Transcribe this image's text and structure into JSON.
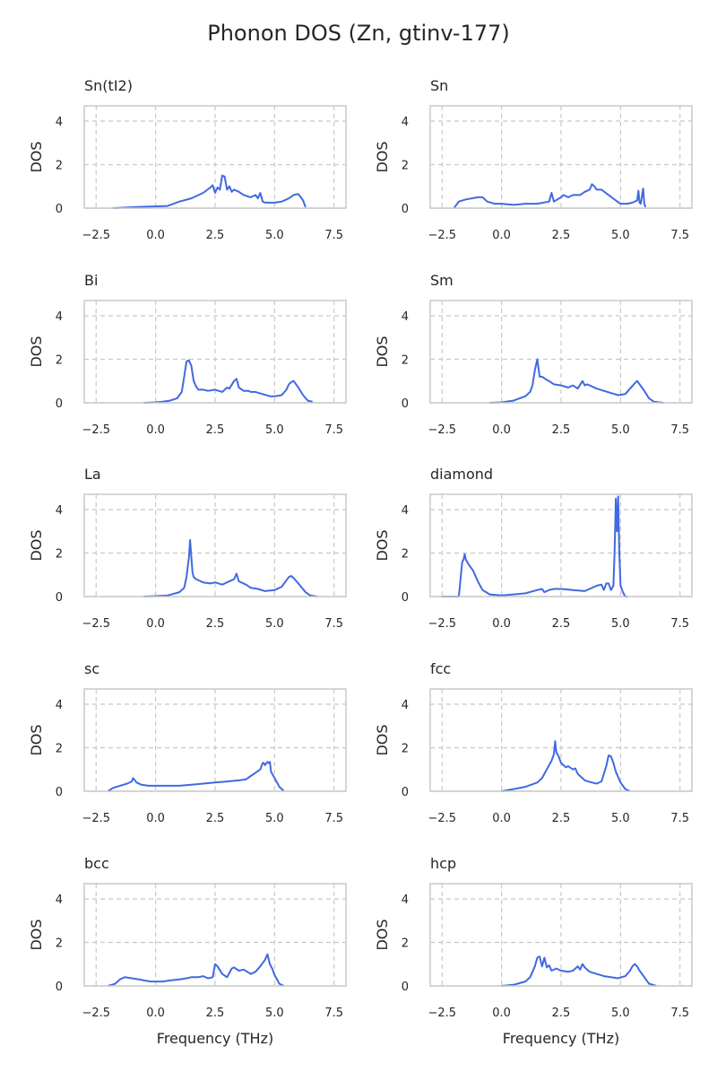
{
  "figure": {
    "title": "Phonon DOS (Zn, gtinv-177)"
  },
  "style": {
    "line_color": "#4169e1",
    "grid_color": "#c8c8c8",
    "frame_color": "#c8c8c8",
    "text_color": "#262626"
  },
  "axes": {
    "xlim": [
      -3.0,
      8.0
    ],
    "ylim": [
      0,
      4.7
    ],
    "xticks": [
      -2.5,
      0.0,
      2.5,
      5.0,
      7.5
    ],
    "xtick_labels": [
      "−2.5",
      "0.0",
      "2.5",
      "5.0",
      "7.5"
    ],
    "yticks": [
      0,
      2,
      4
    ],
    "ytick_labels": [
      "0",
      "2",
      "4"
    ],
    "ylabel": "DOS",
    "xlabel": "Frequency (THz)",
    "grid": true,
    "grid_style": "dashed"
  },
  "chart_data": [
    {
      "type": "line",
      "title": "Sn(tI2)",
      "x": [
        -1.8,
        -0.8,
        0.5,
        1.0,
        1.5,
        2.0,
        2.3,
        2.4,
        2.5,
        2.6,
        2.7,
        2.8,
        2.9,
        3.0,
        3.1,
        3.2,
        3.3,
        3.5,
        3.7,
        4.0,
        4.2,
        4.3,
        4.4,
        4.5,
        4.6,
        4.8,
        5.0,
        5.3,
        5.6,
        5.8,
        6.0,
        6.1,
        6.2,
        6.3
      ],
      "y": [
        0,
        0.05,
        0.1,
        0.3,
        0.45,
        0.7,
        0.95,
        1.05,
        0.7,
        0.95,
        0.85,
        1.5,
        1.45,
        0.85,
        1.0,
        0.75,
        0.85,
        0.75,
        0.6,
        0.5,
        0.6,
        0.45,
        0.7,
        0.3,
        0.25,
        0.25,
        0.25,
        0.3,
        0.45,
        0.6,
        0.65,
        0.5,
        0.35,
        0.05
      ]
    },
    {
      "type": "line",
      "title": "Sn",
      "x": [
        -2.0,
        -1.8,
        -1.5,
        -1.0,
        -0.8,
        -0.6,
        -0.3,
        0.0,
        0.5,
        1.0,
        1.5,
        2.0,
        2.1,
        2.2,
        2.5,
        2.6,
        2.8,
        3.0,
        3.3,
        3.5,
        3.7,
        3.8,
        3.9,
        4.0,
        4.2,
        4.5,
        4.8,
        5.0,
        5.3,
        5.5,
        5.7,
        5.75,
        5.8,
        5.85,
        5.95,
        6.0,
        6.05
      ],
      "y": [
        0,
        0.3,
        0.4,
        0.5,
        0.5,
        0.3,
        0.2,
        0.2,
        0.15,
        0.2,
        0.2,
        0.3,
        0.7,
        0.3,
        0.5,
        0.6,
        0.5,
        0.6,
        0.6,
        0.75,
        0.85,
        1.1,
        1.0,
        0.85,
        0.85,
        0.6,
        0.35,
        0.2,
        0.2,
        0.25,
        0.35,
        0.8,
        0.25,
        0.2,
        0.9,
        0.2,
        0.05
      ]
    },
    {
      "type": "line",
      "title": "Bi",
      "x": [
        -0.5,
        0.0,
        0.3,
        0.6,
        0.9,
        1.1,
        1.2,
        1.3,
        1.4,
        1.5,
        1.6,
        1.7,
        1.8,
        2.0,
        2.2,
        2.5,
        2.8,
        3.0,
        3.1,
        3.3,
        3.4,
        3.5,
        3.7,
        3.9,
        4.0,
        4.2,
        4.5,
        4.8,
        5.0,
        5.3,
        5.5,
        5.6,
        5.7,
        5.8,
        6.0,
        6.2,
        6.4,
        6.6
      ],
      "y": [
        0,
        0.02,
        0.05,
        0.1,
        0.2,
        0.5,
        1.2,
        1.9,
        1.95,
        1.7,
        1.0,
        0.75,
        0.6,
        0.6,
        0.55,
        0.6,
        0.5,
        0.7,
        0.65,
        1.0,
        1.1,
        0.7,
        0.55,
        0.55,
        0.5,
        0.5,
        0.4,
        0.3,
        0.3,
        0.35,
        0.6,
        0.85,
        0.95,
        1.0,
        0.7,
        0.35,
        0.1,
        0.05
      ]
    },
    {
      "type": "line",
      "title": "Sm",
      "x": [
        -0.5,
        0.0,
        0.5,
        1.0,
        1.2,
        1.3,
        1.4,
        1.5,
        1.6,
        1.7,
        1.9,
        2.0,
        2.2,
        2.5,
        2.8,
        3.0,
        3.2,
        3.4,
        3.5,
        3.6,
        3.8,
        4.0,
        4.3,
        4.6,
        4.9,
        5.2,
        5.4,
        5.6,
        5.7,
        5.8,
        6.0,
        6.2,
        6.4,
        6.8
      ],
      "y": [
        0,
        0.02,
        0.1,
        0.3,
        0.5,
        0.8,
        1.5,
        2.0,
        1.2,
        1.2,
        1.05,
        1.0,
        0.85,
        0.8,
        0.7,
        0.8,
        0.65,
        1.0,
        0.8,
        0.85,
        0.75,
        0.65,
        0.55,
        0.45,
        0.35,
        0.4,
        0.65,
        0.9,
        1.0,
        0.85,
        0.55,
        0.2,
        0.05,
        0
      ]
    },
    {
      "type": "line",
      "title": "La",
      "x": [
        -0.5,
        0.0,
        0.5,
        1.0,
        1.2,
        1.3,
        1.4,
        1.45,
        1.5,
        1.55,
        1.6,
        1.7,
        1.9,
        2.0,
        2.3,
        2.5,
        2.8,
        3.0,
        3.2,
        3.3,
        3.4,
        3.5,
        3.8,
        4.0,
        4.3,
        4.6,
        5.0,
        5.3,
        5.5,
        5.6,
        5.7,
        5.8,
        6.0,
        6.3,
        6.5,
        6.8
      ],
      "y": [
        0,
        0.02,
        0.05,
        0.2,
        0.4,
        0.9,
        1.8,
        2.6,
        1.8,
        1.1,
        0.9,
        0.8,
        0.7,
        0.65,
        0.6,
        0.65,
        0.55,
        0.65,
        0.75,
        0.8,
        1.05,
        0.7,
        0.55,
        0.4,
        0.35,
        0.25,
        0.3,
        0.45,
        0.75,
        0.9,
        0.95,
        0.85,
        0.6,
        0.2,
        0.05,
        0
      ]
    },
    {
      "type": "line",
      "title": "diamond",
      "x": [
        -2.5,
        -1.8,
        -1.75,
        -1.7,
        -1.65,
        -1.6,
        -1.55,
        -1.5,
        -1.4,
        -1.2,
        -1.0,
        -0.8,
        -0.5,
        0.0,
        0.5,
        1.0,
        1.5,
        1.7,
        1.8,
        2.0,
        2.2,
        2.5,
        3.0,
        3.5,
        4.0,
        4.2,
        4.3,
        4.4,
        4.5,
        4.6,
        4.7,
        4.75,
        4.8,
        4.85,
        4.9,
        4.95,
        5.0,
        5.1,
        5.2,
        5.3
      ],
      "y": [
        0,
        0,
        0.5,
        1.1,
        1.6,
        1.7,
        1.95,
        1.7,
        1.5,
        1.2,
        0.7,
        0.3,
        0.1,
        0.05,
        0.1,
        0.15,
        0.3,
        0.35,
        0.2,
        0.3,
        0.35,
        0.35,
        0.3,
        0.25,
        0.5,
        0.55,
        0.3,
        0.6,
        0.6,
        0.3,
        0.5,
        2.0,
        4.5,
        3.0,
        4.6,
        2.0,
        0.5,
        0.2,
        0,
        0
      ]
    },
    {
      "type": "line",
      "title": "sc",
      "x": [
        -2.0,
        -1.8,
        -1.5,
        -1.2,
        -1.0,
        -0.95,
        -0.9,
        -0.8,
        -0.6,
        -0.3,
        0.0,
        0.5,
        1.0,
        1.5,
        2.0,
        2.5,
        3.0,
        3.5,
        3.8,
        4.0,
        4.2,
        4.4,
        4.5,
        4.55,
        4.6,
        4.7,
        4.75,
        4.8,
        4.85,
        5.0,
        5.2,
        5.4
      ],
      "y": [
        0,
        0.15,
        0.25,
        0.35,
        0.45,
        0.6,
        0.55,
        0.4,
        0.3,
        0.25,
        0.25,
        0.25,
        0.25,
        0.3,
        0.35,
        0.4,
        0.45,
        0.5,
        0.55,
        0.7,
        0.85,
        1.0,
        1.3,
        1.3,
        1.2,
        1.35,
        1.3,
        1.35,
        0.9,
        0.6,
        0.2,
        0
      ]
    },
    {
      "type": "line",
      "title": "fcc",
      "x": [
        0.0,
        0.5,
        1.0,
        1.5,
        1.7,
        1.8,
        1.9,
        2.0,
        2.1,
        2.2,
        2.25,
        2.3,
        2.4,
        2.5,
        2.6,
        2.7,
        2.8,
        3.0,
        3.1,
        3.2,
        3.3,
        3.5,
        3.8,
        4.0,
        4.2,
        4.3,
        4.4,
        4.5,
        4.6,
        4.7,
        4.8,
        5.0,
        5.2,
        5.4
      ],
      "y": [
        0,
        0.1,
        0.2,
        0.4,
        0.6,
        0.8,
        1.0,
        1.2,
        1.4,
        1.7,
        2.3,
        1.8,
        1.6,
        1.3,
        1.2,
        1.1,
        1.15,
        1.0,
        1.05,
        0.8,
        0.7,
        0.5,
        0.4,
        0.35,
        0.45,
        0.8,
        1.15,
        1.65,
        1.6,
        1.3,
        0.9,
        0.4,
        0.1,
        0
      ]
    },
    {
      "type": "line",
      "title": "bcc",
      "x": [
        -2.0,
        -1.7,
        -1.5,
        -1.3,
        -1.0,
        -0.7,
        -0.5,
        -0.2,
        0.0,
        0.3,
        0.6,
        1.0,
        1.3,
        1.5,
        1.8,
        2.0,
        2.2,
        2.4,
        2.5,
        2.6,
        2.8,
        3.0,
        3.2,
        3.3,
        3.5,
        3.7,
        4.0,
        4.2,
        4.4,
        4.6,
        4.7,
        4.8,
        4.9,
        5.0,
        5.2,
        5.4
      ],
      "y": [
        0,
        0.1,
        0.3,
        0.4,
        0.35,
        0.3,
        0.25,
        0.2,
        0.2,
        0.2,
        0.25,
        0.3,
        0.35,
        0.4,
        0.4,
        0.45,
        0.35,
        0.4,
        1.0,
        0.9,
        0.55,
        0.4,
        0.8,
        0.85,
        0.7,
        0.75,
        0.55,
        0.65,
        0.9,
        1.2,
        1.45,
        1.0,
        0.8,
        0.5,
        0.1,
        0
      ]
    },
    {
      "type": "line",
      "title": "hcp",
      "x": [
        0.0,
        0.5,
        1.0,
        1.2,
        1.4,
        1.5,
        1.6,
        1.7,
        1.8,
        1.9,
        2.0,
        2.1,
        2.3,
        2.5,
        2.8,
        3.0,
        3.2,
        3.3,
        3.4,
        3.5,
        3.7,
        4.0,
        4.3,
        4.6,
        4.9,
        5.2,
        5.4,
        5.5,
        5.6,
        5.7,
        5.8,
        6.0,
        6.2,
        6.5
      ],
      "y": [
        0,
        0.05,
        0.2,
        0.4,
        0.9,
        1.3,
        1.35,
        0.9,
        1.3,
        0.85,
        0.95,
        0.7,
        0.8,
        0.7,
        0.65,
        0.7,
        0.9,
        0.75,
        1.0,
        0.85,
        0.65,
        0.55,
        0.45,
        0.4,
        0.35,
        0.45,
        0.7,
        0.9,
        1.0,
        0.9,
        0.7,
        0.4,
        0.1,
        0
      ]
    }
  ]
}
